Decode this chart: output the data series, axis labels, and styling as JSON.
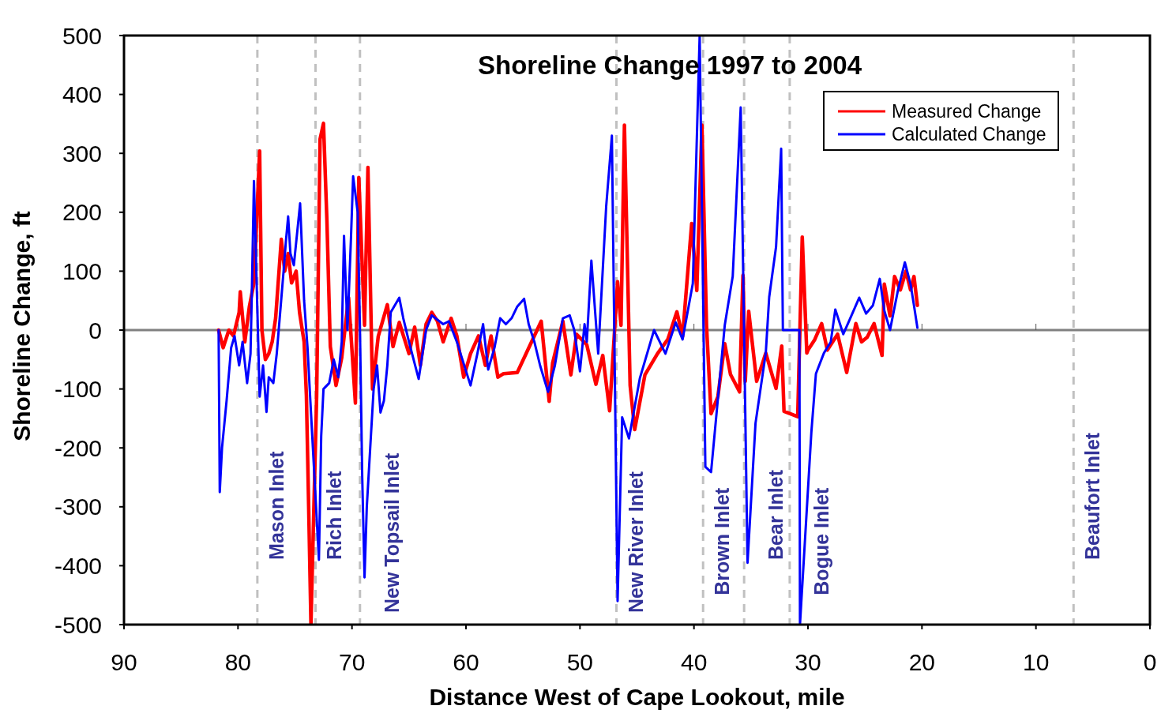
{
  "chart_data": {
    "type": "line",
    "title": "Shoreline Change 1997 to 2004",
    "xlabel": "Distance West of Cape Lookout, mile",
    "ylabel": "Shoreline Change, ft",
    "xlim": [
      90,
      0
    ],
    "xticks": [
      90,
      80,
      70,
      60,
      50,
      40,
      30,
      20,
      10,
      0
    ],
    "ylim": [
      -500,
      500
    ],
    "yticks": [
      -500,
      -400,
      -300,
      -200,
      -100,
      0,
      100,
      200,
      300,
      400,
      500
    ],
    "grid": false,
    "legend": "top right",
    "line_style": "solid",
    "marker": "none",
    "series": [
      {
        "name": "Measured Change",
        "color": "#ff0000",
        "x": [
          81.7,
          81.3,
          80.8,
          80.4,
          79.9,
          79.8,
          79.4,
          79.0,
          78.6,
          78.1,
          77.9,
          77.6,
          77.3,
          77.0,
          76.7,
          76.4,
          76.2,
          75.9,
          75.6,
          75.3,
          74.9,
          74.6,
          74.2,
          74.0,
          73.8,
          73.6,
          73.1,
          72.8,
          72.5,
          72.2,
          71.9,
          71.4,
          70.9,
          70.3,
          69.7,
          69.4,
          68.9,
          68.6,
          68.2,
          67.7,
          66.9,
          66.4,
          65.85,
          65.0,
          64.5,
          64.0,
          63.5,
          63.0,
          62.5,
          62.0,
          61.3,
          60.8,
          60.2,
          59.6,
          58.9,
          58.3,
          57.8,
          57.2,
          56.7,
          55.5,
          53.4,
          52.7,
          52.4,
          51.5,
          50.8,
          50.3,
          49.4,
          48.6,
          48.0,
          47.4,
          46.7,
          46.4,
          46.1,
          45.6,
          45.2,
          44.3,
          43.2,
          42.3,
          41.5,
          41.0,
          40.2,
          39.75,
          39.3,
          38.9,
          38.5,
          37.9,
          37.3,
          36.8,
          36.0,
          35.7,
          35.5,
          35.2,
          34.5,
          33.7,
          32.8,
          32.3,
          32.1,
          30.9,
          30.5,
          30.1,
          30.0,
          29.4,
          28.8,
          28.3,
          27.4,
          26.6,
          25.8,
          25.3,
          24.8,
          24.2,
          23.5,
          23.3,
          22.8,
          22.4,
          21.9,
          21.4,
          21.0,
          20.7,
          20.4
        ],
        "values": [
          0,
          -30,
          0,
          -10,
          30,
          65,
          -20,
          40,
          80,
          304,
          0,
          -50,
          -40,
          -20,
          20,
          100,
          154,
          100,
          130,
          80,
          100,
          30,
          -20,
          -110,
          -300,
          -500,
          -113,
          324,
          351,
          186,
          -28,
          -94,
          -47,
          55,
          -124,
          259,
          8,
          276,
          -100,
          -11,
          43,
          -28,
          13,
          -40,
          5,
          -60,
          10,
          30,
          15,
          -20,
          20,
          -10,
          -80,
          -40,
          -10,
          -60,
          -10,
          -80,
          -74,
          -72,
          15,
          -121,
          -56,
          15,
          -76,
          -7,
          -25,
          -92,
          -43,
          -137,
          82,
          8,
          348,
          -94,
          -169,
          -76,
          -40,
          -16,
          31,
          -11,
          181,
          67,
          348,
          8,
          -142,
          -113,
          -23,
          -75,
          -105,
          93,
          -87,
          32,
          -87,
          -39,
          -99,
          -27,
          -138,
          -147,
          158,
          -39,
          -34,
          -16,
          11,
          -34,
          -7,
          -72,
          11,
          -20,
          -12,
          11,
          -43,
          78,
          24,
          91,
          68,
          100,
          68,
          91,
          42
        ]
      },
      {
        "name": "Calculated Change",
        "color": "#0000ff",
        "x": [
          81.7,
          81.6,
          81.4,
          81.0,
          80.6,
          80.3,
          79.9,
          79.6,
          79.2,
          78.9,
          78.8,
          78.7,
          78.6,
          78.1,
          77.8,
          77.5,
          77.3,
          76.9,
          76.6,
          76.3,
          76.0,
          75.8,
          75.6,
          75.4,
          75.1,
          74.55,
          74.2,
          73.9,
          73.6,
          72.9,
          72.7,
          72.5,
          72.0,
          71.6,
          71.2,
          70.9,
          70.7,
          70.4,
          70.1,
          69.9,
          69.5,
          69.3,
          69.1,
          68.9,
          68.7,
          68.4,
          68.1,
          67.8,
          67.5,
          67.2,
          66.9,
          66.6,
          65.85,
          65.5,
          65.0,
          64.15,
          63.5,
          63.0,
          62.0,
          61.5,
          60.8,
          59.6,
          59.0,
          58.5,
          58.05,
          57.5,
          57.0,
          56.5,
          56.0,
          55.5,
          54.9,
          54.5,
          54.0,
          53.5,
          52.8,
          52.2,
          51.5,
          50.9,
          50.5,
          50.0,
          49.6,
          49.4,
          49.0,
          48.4,
          47.7,
          47.2,
          46.7,
          46.3,
          45.7,
          44.75,
          43.5,
          42.5,
          41.6,
          41.0,
          40.1,
          39.5,
          39.0,
          38.5,
          37.3,
          36.6,
          35.9,
          35.3,
          34.6,
          33.7,
          33.4,
          32.8,
          32.35,
          32.2,
          30.75,
          30.7,
          29.7,
          29.3,
          28.6,
          28.0,
          27.6,
          26.9,
          26.2,
          25.5,
          24.9,
          24.3,
          23.7,
          23.3,
          22.8,
          22.1,
          21.5,
          21.0,
          20.7,
          20.4
        ],
        "values": [
          0,
          -275,
          -200,
          -120,
          -30,
          -10,
          -60,
          -20,
          -90,
          -40,
          50,
          150,
          253,
          -113,
          -60,
          -139,
          -80,
          -90,
          -40,
          30,
          100,
          150,
          193,
          130,
          110,
          215,
          50,
          -30,
          -139,
          -390,
          -180,
          -100,
          -90,
          -50,
          -80,
          -20,
          160,
          0,
          150,
          261,
          200,
          0,
          -250,
          -420,
          -300,
          -200,
          -100,
          -60,
          -140,
          -120,
          -60,
          30,
          55,
          20,
          -20,
          -83,
          0,
          25,
          10,
          15,
          -20,
          -94,
          -40,
          10,
          -67,
          -30,
          20,
          10,
          20,
          40,
          53,
          10,
          -20,
          -60,
          -105,
          -60,
          20,
          25,
          0,
          -70,
          10,
          -20,
          118,
          -40,
          210,
          330,
          -460,
          -148,
          -184,
          -82,
          0,
          -40,
          13,
          -16,
          79,
          500,
          -232,
          -241,
          8,
          91,
          378,
          -395,
          -158,
          -39,
          56,
          141,
          308,
          0,
          0,
          -500,
          -173,
          -74,
          -39,
          -20,
          35,
          -7,
          24,
          55,
          28,
          42,
          87,
          33,
          0,
          68,
          115,
          78,
          42,
          4
        ]
      }
    ],
    "ref_lines": [
      {
        "axis": "y",
        "value": 0,
        "color": "#808080",
        "line_style": "solid"
      },
      {
        "axis": "x",
        "value": 78.3,
        "label": "Mason Inlet",
        "color": "#c0c0c0",
        "line_style": "dashed"
      },
      {
        "axis": "x",
        "value": 73.2,
        "label": "Rich Inlet",
        "color": "#c0c0c0",
        "line_style": "dashed"
      },
      {
        "axis": "x",
        "value": 69.3,
        "label": "New Topsail Inlet",
        "color": "#c0c0c0",
        "line_style": "dashed"
      },
      {
        "axis": "x",
        "value": 46.8,
        "label": "New River Inlet",
        "color": "#c0c0c0",
        "line_style": "dashed"
      },
      {
        "axis": "x",
        "value": 39.2,
        "label": "Brown Inlet",
        "color": "#c0c0c0",
        "line_style": "dashed"
      },
      {
        "axis": "x",
        "value": 35.6,
        "label": "Bear Inlet",
        "color": "#c0c0c0",
        "line_style": "dashed"
      },
      {
        "axis": "x",
        "value": 31.6,
        "label": "Bogue Inlet",
        "color": "#c0c0c0",
        "line_style": "dashed"
      },
      {
        "axis": "x",
        "value": 6.7,
        "label": "Beaufort Inlet",
        "color": "#c0c0c0",
        "line_style": "dashed"
      }
    ]
  }
}
